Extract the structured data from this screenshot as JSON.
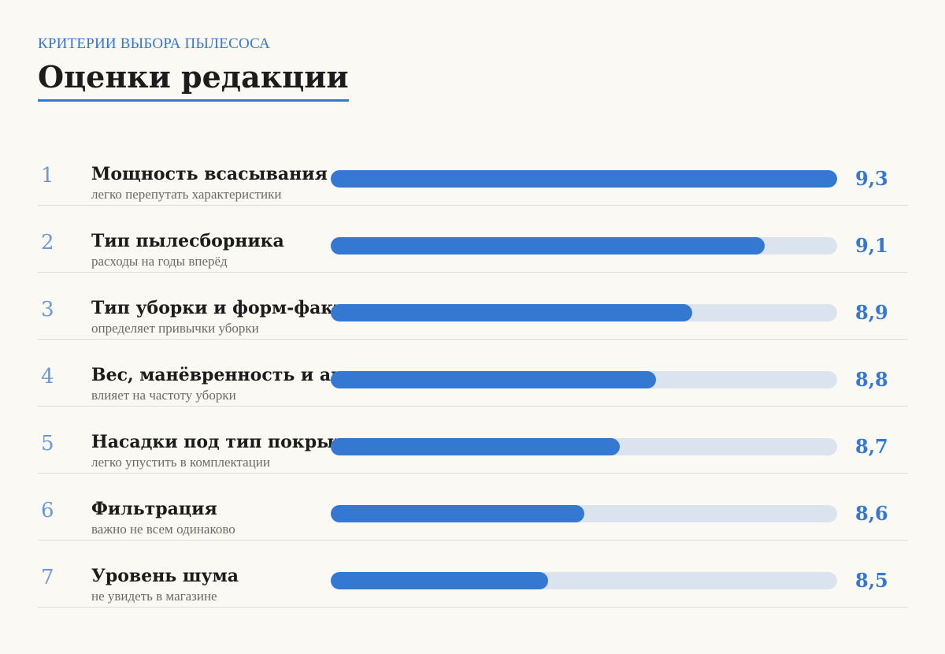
{
  "header": {
    "kicker": "КРИТЕРИИ ВЫБОРА ПЫЛЕСОСА",
    "title": "Оценки редакции"
  },
  "colors": {
    "accent": "#3478d2",
    "track": "#dbe4ee",
    "rank": "#6b98d8",
    "background": "#faf9f4"
  },
  "chart_data": {
    "type": "bar",
    "orientation": "horizontal",
    "title": "Оценки редакции",
    "xlim": [
      7.9,
      9.3
    ],
    "rows": [
      {
        "rank": "1",
        "label": "Мощность всасывания",
        "sublabel": "легко перепутать характеристики",
        "value": 9.3,
        "value_label": "9,3"
      },
      {
        "rank": "2",
        "label": "Тип пылесборника",
        "sublabel": "расходы на годы вперёд",
        "value": 9.1,
        "value_label": "9,1"
      },
      {
        "rank": "3",
        "label": "Тип уборки и форм-фактор",
        "sublabel": "определяет привычки уборки",
        "value": 8.9,
        "value_label": "8,9"
      },
      {
        "rank": "4",
        "label": "Вес, манёвренность и автономность",
        "sublabel": "влияет на частоту уборки",
        "value": 8.8,
        "value_label": "8,8"
      },
      {
        "rank": "5",
        "label": "Насадки под тип покрытия",
        "sublabel": "легко упустить в комплектации",
        "value": 8.7,
        "value_label": "8,7"
      },
      {
        "rank": "6",
        "label": "Фильтрация",
        "sublabel": "важно не всем одинаково",
        "value": 8.6,
        "value_label": "8,6"
      },
      {
        "rank": "7",
        "label": "Уровень шума",
        "sublabel": "не увидеть в магазине",
        "value": 8.5,
        "value_label": "8,5"
      }
    ]
  }
}
